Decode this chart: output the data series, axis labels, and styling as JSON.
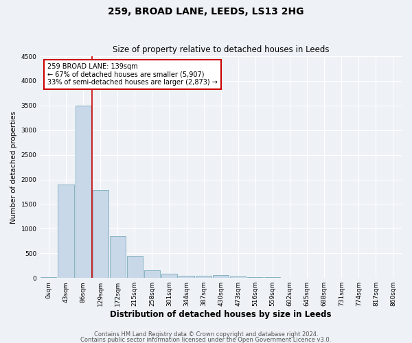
{
  "title1": "259, BROAD LANE, LEEDS, LS13 2HG",
  "title2": "Size of property relative to detached houses in Leeds",
  "xlabel": "Distribution of detached houses by size in Leeds",
  "ylabel": "Number of detached properties",
  "bin_labels": [
    "0sqm",
    "43sqm",
    "86sqm",
    "129sqm",
    "172sqm",
    "215sqm",
    "258sqm",
    "301sqm",
    "344sqm",
    "387sqm",
    "430sqm",
    "473sqm",
    "516sqm",
    "559sqm",
    "602sqm",
    "645sqm",
    "688sqm",
    "731sqm",
    "774sqm",
    "817sqm",
    "860sqm"
  ],
  "bar_heights": [
    10,
    1900,
    3500,
    1780,
    850,
    450,
    160,
    90,
    45,
    40,
    55,
    30,
    20,
    10,
    5,
    5,
    3,
    2,
    2,
    1,
    0
  ],
  "bar_color": "#c8d8e8",
  "bar_edge_color": "#7aaabb",
  "vline_color": "#cc0000",
  "vline_x": 2.5,
  "annotation_title": "259 BROAD LANE: 139sqm",
  "annotation_line1": "← 67% of detached houses are smaller (5,907)",
  "annotation_line2": "33% of semi-detached houses are larger (2,873) →",
  "annotation_box_color": "#ffffff",
  "annotation_box_edge": "#cc0000",
  "ylim": [
    0,
    4500
  ],
  "yticks": [
    0,
    500,
    1000,
    1500,
    2000,
    2500,
    3000,
    3500,
    4000,
    4500
  ],
  "footer1": "Contains HM Land Registry data © Crown copyright and database right 2024.",
  "footer2": "Contains public sector information licensed under the Open Government Licence v3.0.",
  "background_color": "#eef2f7",
  "grid_color": "#ffffff",
  "title1_fontsize": 10,
  "title2_fontsize": 8.5,
  "xlabel_fontsize": 8.5,
  "ylabel_fontsize": 7.5,
  "tick_fontsize": 6.5,
  "footer_fontsize": 6,
  "annot_fontsize": 7
}
